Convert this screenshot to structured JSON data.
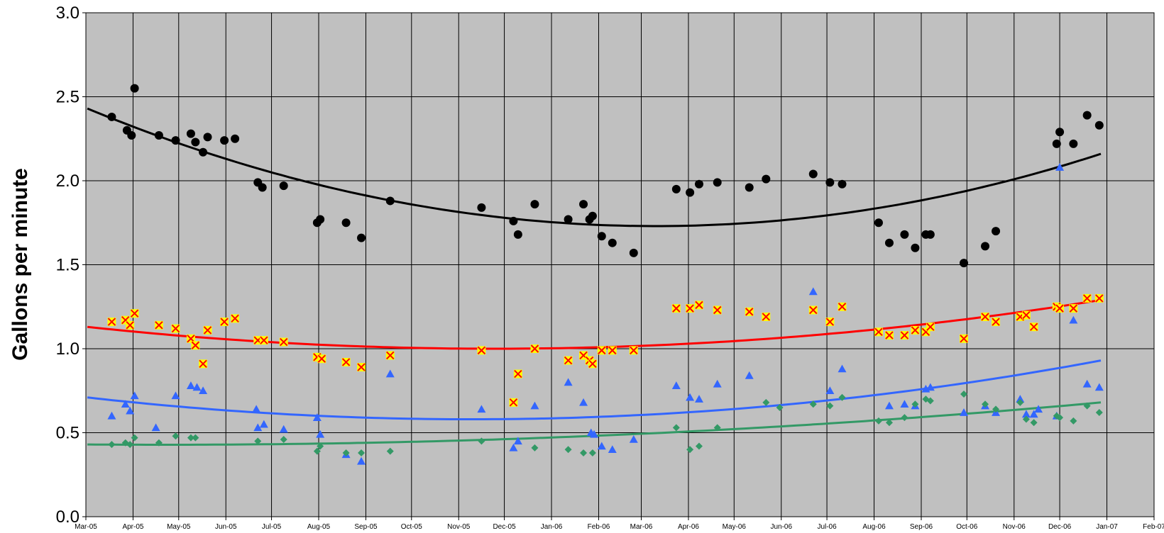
{
  "chart_data": {
    "type": "scatter",
    "title": "",
    "xlabel": "",
    "ylabel": "Gallons per minute",
    "ylim": [
      0,
      3
    ],
    "yticks": [
      "0.0",
      "0.5",
      "1.0",
      "1.5",
      "2.0",
      "2.5",
      "3.0"
    ],
    "xlim": [
      "2005-03-01",
      "2007-02-01"
    ],
    "xticks": [
      {
        "date": "2005-03-01",
        "label": "Mar-05"
      },
      {
        "date": "2005-04-01",
        "label": "Apr-05"
      },
      {
        "date": "2005-05-01",
        "label": "May-05"
      },
      {
        "date": "2005-06-01",
        "label": "Jun-05"
      },
      {
        "date": "2005-07-01",
        "label": "Jul-05"
      },
      {
        "date": "2005-08-01",
        "label": "Aug-05"
      },
      {
        "date": "2005-09-01",
        "label": "Sep-05"
      },
      {
        "date": "2005-10-01",
        "label": "Oct-05"
      },
      {
        "date": "2005-11-01",
        "label": "Nov-05"
      },
      {
        "date": "2005-12-01",
        "label": "Dec-05"
      },
      {
        "date": "2006-01-01",
        "label": "Jan-06"
      },
      {
        "date": "2006-02-01",
        "label": "Feb-06"
      },
      {
        "date": "2006-03-01",
        "label": "Mar-06"
      },
      {
        "date": "2006-04-01",
        "label": "Apr-06"
      },
      {
        "date": "2006-05-01",
        "label": "May-06"
      },
      {
        "date": "2006-06-01",
        "label": "Jun-06"
      },
      {
        "date": "2006-07-01",
        "label": "Jul-06"
      },
      {
        "date": "2006-08-01",
        "label": "Aug-06"
      },
      {
        "date": "2006-09-01",
        "label": "Sep-06"
      },
      {
        "date": "2006-10-01",
        "label": "Oct-06"
      },
      {
        "date": "2006-11-01",
        "label": "Nov-06"
      },
      {
        "date": "2006-12-01",
        "label": "Dec-06"
      },
      {
        "date": "2007-01-01",
        "label": "Jan-07"
      },
      {
        "date": "2007-02-01",
        "label": "Feb-07"
      }
    ],
    "grid": true,
    "plot_background": "#c0c0c0",
    "series": [
      {
        "marker": "circle",
        "color": "#000000",
        "points": [
          [
            "2005-03-18",
            2.38
          ],
          [
            "2005-03-28",
            2.3
          ],
          [
            "2005-03-31",
            2.27
          ],
          [
            "2005-04-02",
            2.55
          ],
          [
            "2005-04-18",
            2.27
          ],
          [
            "2005-04-29",
            2.24
          ],
          [
            "2005-05-09",
            2.28
          ],
          [
            "2005-05-12",
            2.23
          ],
          [
            "2005-05-17",
            2.17
          ],
          [
            "2005-05-20",
            2.26
          ],
          [
            "2005-05-31",
            2.24
          ],
          [
            "2005-06-07",
            2.25
          ],
          [
            "2005-06-22",
            1.99
          ],
          [
            "2005-06-25",
            1.96
          ],
          [
            "2005-07-09",
            1.97
          ],
          [
            "2005-07-31",
            1.75
          ],
          [
            "2005-08-02",
            1.77
          ],
          [
            "2005-08-19",
            1.75
          ],
          [
            "2005-08-29",
            1.66
          ],
          [
            "2005-09-17",
            1.88
          ],
          [
            "2005-11-16",
            1.84
          ],
          [
            "2005-12-07",
            1.76
          ],
          [
            "2005-12-10",
            1.68
          ],
          [
            "2005-12-21",
            1.86
          ],
          [
            "2006-01-12",
            1.77
          ],
          [
            "2006-01-22",
            1.86
          ],
          [
            "2006-01-26",
            1.77
          ],
          [
            "2006-01-28",
            1.79
          ],
          [
            "2006-02-03",
            1.67
          ],
          [
            "2006-02-10",
            1.63
          ],
          [
            "2006-02-24",
            1.57
          ],
          [
            "2006-03-24",
            1.95
          ],
          [
            "2006-04-02",
            1.93
          ],
          [
            "2006-04-08",
            1.98
          ],
          [
            "2006-04-20",
            1.99
          ],
          [
            "2006-05-11",
            1.96
          ],
          [
            "2006-05-22",
            2.01
          ],
          [
            "2006-06-22",
            2.04
          ],
          [
            "2006-07-03",
            1.99
          ],
          [
            "2006-07-11",
            1.98
          ],
          [
            "2006-08-04",
            1.75
          ],
          [
            "2006-08-11",
            1.63
          ],
          [
            "2006-08-21",
            1.68
          ],
          [
            "2006-08-28",
            1.6
          ],
          [
            "2006-09-04",
            1.68
          ],
          [
            "2006-09-07",
            1.68
          ],
          [
            "2006-09-29",
            1.51
          ],
          [
            "2006-10-13",
            1.61
          ],
          [
            "2006-10-20",
            1.7
          ],
          [
            "2006-11-29",
            2.22
          ],
          [
            "2006-12-01",
            2.29
          ],
          [
            "2006-12-10",
            2.22
          ],
          [
            "2006-12-19",
            2.39
          ],
          [
            "2006-12-27",
            2.33
          ]
        ],
        "trend": {
          "start": [
            "2005-03-02",
            2.43
          ],
          "mid": [
            "2006-03-14",
            1.73
          ],
          "end": [
            "2006-12-28",
            2.16
          ]
        }
      },
      {
        "marker": "x",
        "color": "#ffff00",
        "stroke": "#ff0000",
        "points": [
          [
            "2005-03-18",
            1.16
          ],
          [
            "2005-03-27",
            1.17
          ],
          [
            "2005-03-30",
            1.14
          ],
          [
            "2005-04-02",
            1.21
          ],
          [
            "2005-04-18",
            1.14
          ],
          [
            "2005-04-29",
            1.12
          ],
          [
            "2005-05-09",
            1.06
          ],
          [
            "2005-05-12",
            1.02
          ],
          [
            "2005-05-17",
            0.91
          ],
          [
            "2005-05-20",
            1.11
          ],
          [
            "2005-05-31",
            1.16
          ],
          [
            "2005-06-07",
            1.18
          ],
          [
            "2005-06-22",
            1.05
          ],
          [
            "2005-06-26",
            1.05
          ],
          [
            "2005-07-09",
            1.04
          ],
          [
            "2005-07-31",
            0.95
          ],
          [
            "2005-08-03",
            0.94
          ],
          [
            "2005-08-19",
            0.92
          ],
          [
            "2005-08-29",
            0.89
          ],
          [
            "2005-09-17",
            0.96
          ],
          [
            "2005-11-16",
            0.99
          ],
          [
            "2005-12-07",
            0.68
          ],
          [
            "2005-12-10",
            0.85
          ],
          [
            "2005-12-21",
            1.0
          ],
          [
            "2006-01-12",
            0.93
          ],
          [
            "2006-01-22",
            0.96
          ],
          [
            "2006-01-26",
            0.93
          ],
          [
            "2006-01-28",
            0.91
          ],
          [
            "2006-02-03",
            0.99
          ],
          [
            "2006-02-10",
            0.99
          ],
          [
            "2006-02-24",
            0.99
          ],
          [
            "2006-03-24",
            1.24
          ],
          [
            "2006-04-02",
            1.24
          ],
          [
            "2006-04-08",
            1.26
          ],
          [
            "2006-04-20",
            1.23
          ],
          [
            "2006-05-11",
            1.22
          ],
          [
            "2006-05-22",
            1.19
          ],
          [
            "2006-06-22",
            1.23
          ],
          [
            "2006-07-03",
            1.16
          ],
          [
            "2006-07-11",
            1.25
          ],
          [
            "2006-08-04",
            1.1
          ],
          [
            "2006-08-11",
            1.08
          ],
          [
            "2006-08-21",
            1.08
          ],
          [
            "2006-08-28",
            1.11
          ],
          [
            "2006-09-04",
            1.1
          ],
          [
            "2006-09-07",
            1.13
          ],
          [
            "2006-09-29",
            1.06
          ],
          [
            "2006-10-13",
            1.19
          ],
          [
            "2006-10-20",
            1.16
          ],
          [
            "2006-11-05",
            1.19
          ],
          [
            "2006-11-09",
            1.2
          ],
          [
            "2006-11-14",
            1.13
          ],
          [
            "2006-11-29",
            1.25
          ],
          [
            "2006-12-01",
            1.24
          ],
          [
            "2006-12-10",
            1.24
          ],
          [
            "2006-12-19",
            1.3
          ],
          [
            "2006-12-27",
            1.3
          ]
        ],
        "trend": {
          "start": [
            "2005-03-02",
            1.13
          ],
          "mid": [
            "2005-11-26",
            1.0
          ],
          "end": [
            "2006-12-28",
            1.29
          ]
        }
      },
      {
        "marker": "triangle",
        "color": "#3366ff",
        "points": [
          [
            "2005-03-18",
            0.6
          ],
          [
            "2005-03-27",
            0.67
          ],
          [
            "2005-03-30",
            0.63
          ],
          [
            "2005-04-02",
            0.72
          ],
          [
            "2005-04-16",
            0.53
          ],
          [
            "2005-04-29",
            0.72
          ],
          [
            "2005-05-09",
            0.78
          ],
          [
            "2005-05-13",
            0.77
          ],
          [
            "2005-05-17",
            0.75
          ],
          [
            "2005-06-21",
            0.64
          ],
          [
            "2005-06-22",
            0.53
          ],
          [
            "2005-06-26",
            0.55
          ],
          [
            "2005-07-09",
            0.52
          ],
          [
            "2005-07-31",
            0.59
          ],
          [
            "2005-08-02",
            0.49
          ],
          [
            "2005-08-19",
            0.37
          ],
          [
            "2005-08-29",
            0.33
          ],
          [
            "2005-09-17",
            0.85
          ],
          [
            "2005-11-16",
            0.64
          ],
          [
            "2005-12-07",
            0.41
          ],
          [
            "2005-12-10",
            0.45
          ],
          [
            "2005-12-21",
            0.66
          ],
          [
            "2006-01-12",
            0.8
          ],
          [
            "2006-01-22",
            0.68
          ],
          [
            "2006-01-27",
            0.5
          ],
          [
            "2006-01-29",
            0.49
          ],
          [
            "2006-02-03",
            0.42
          ],
          [
            "2006-02-10",
            0.4
          ],
          [
            "2006-02-24",
            0.46
          ],
          [
            "2006-03-24",
            0.78
          ],
          [
            "2006-04-02",
            0.71
          ],
          [
            "2006-04-08",
            0.7
          ],
          [
            "2006-04-20",
            0.79
          ],
          [
            "2006-05-11",
            0.84
          ],
          [
            "2006-06-22",
            1.34
          ],
          [
            "2006-07-03",
            0.75
          ],
          [
            "2006-07-11",
            0.88
          ],
          [
            "2006-08-11",
            0.66
          ],
          [
            "2006-08-21",
            0.67
          ],
          [
            "2006-08-28",
            0.66
          ],
          [
            "2006-09-04",
            0.76
          ],
          [
            "2006-09-07",
            0.77
          ],
          [
            "2006-09-29",
            0.62
          ],
          [
            "2006-10-13",
            0.66
          ],
          [
            "2006-10-20",
            0.62
          ],
          [
            "2006-11-05",
            0.7
          ],
          [
            "2006-11-09",
            0.61
          ],
          [
            "2006-11-14",
            0.61
          ],
          [
            "2006-11-17",
            0.64
          ],
          [
            "2006-11-29",
            0.6
          ],
          [
            "2006-12-01",
            2.08
          ],
          [
            "2006-12-10",
            1.17
          ],
          [
            "2006-12-19",
            0.79
          ],
          [
            "2006-12-27",
            0.77
          ]
        ],
        "trend": {
          "start": [
            "2005-03-02",
            0.71
          ],
          "mid": [
            "2005-11-13",
            0.58
          ],
          "end": [
            "2006-12-28",
            0.93
          ]
        }
      },
      {
        "marker": "diamond",
        "color": "#339966",
        "points": [
          [
            "2005-03-18",
            0.43
          ],
          [
            "2005-03-27",
            0.44
          ],
          [
            "2005-03-30",
            0.43
          ],
          [
            "2005-04-02",
            0.47
          ],
          [
            "2005-04-18",
            0.44
          ],
          [
            "2005-04-29",
            0.48
          ],
          [
            "2005-05-09",
            0.47
          ],
          [
            "2005-05-12",
            0.47
          ],
          [
            "2005-06-22",
            0.45
          ],
          [
            "2005-07-09",
            0.46
          ],
          [
            "2005-07-31",
            0.39
          ],
          [
            "2005-08-02",
            0.42
          ],
          [
            "2005-08-19",
            0.38
          ],
          [
            "2005-08-29",
            0.38
          ],
          [
            "2005-09-17",
            0.39
          ],
          [
            "2005-11-16",
            0.45
          ],
          [
            "2005-12-21",
            0.41
          ],
          [
            "2006-01-12",
            0.4
          ],
          [
            "2006-01-22",
            0.38
          ],
          [
            "2006-01-28",
            0.38
          ],
          [
            "2006-03-24",
            0.53
          ],
          [
            "2006-04-02",
            0.4
          ],
          [
            "2006-04-08",
            0.42
          ],
          [
            "2006-04-20",
            0.53
          ],
          [
            "2006-05-22",
            0.68
          ],
          [
            "2006-05-31",
            0.65
          ],
          [
            "2006-06-22",
            0.67
          ],
          [
            "2006-07-03",
            0.66
          ],
          [
            "2006-07-11",
            0.71
          ],
          [
            "2006-08-04",
            0.57
          ],
          [
            "2006-08-11",
            0.56
          ],
          [
            "2006-08-21",
            0.59
          ],
          [
            "2006-08-28",
            0.67
          ],
          [
            "2006-09-04",
            0.7
          ],
          [
            "2006-09-07",
            0.69
          ],
          [
            "2006-09-29",
            0.73
          ],
          [
            "2006-10-13",
            0.67
          ],
          [
            "2006-10-20",
            0.64
          ],
          [
            "2006-11-05",
            0.68
          ],
          [
            "2006-11-09",
            0.58
          ],
          [
            "2006-11-14",
            0.56
          ],
          [
            "2006-11-29",
            0.6
          ],
          [
            "2006-12-01",
            0.59
          ],
          [
            "2006-12-10",
            0.57
          ],
          [
            "2006-12-19",
            0.66
          ],
          [
            "2006-12-27",
            0.62
          ]
        ],
        "trend": {
          "start": [
            "2005-03-02",
            0.43
          ],
          "mid": [
            "2005-06-11",
            0.43
          ],
          "end": [
            "2006-12-28",
            0.68
          ]
        }
      }
    ]
  }
}
